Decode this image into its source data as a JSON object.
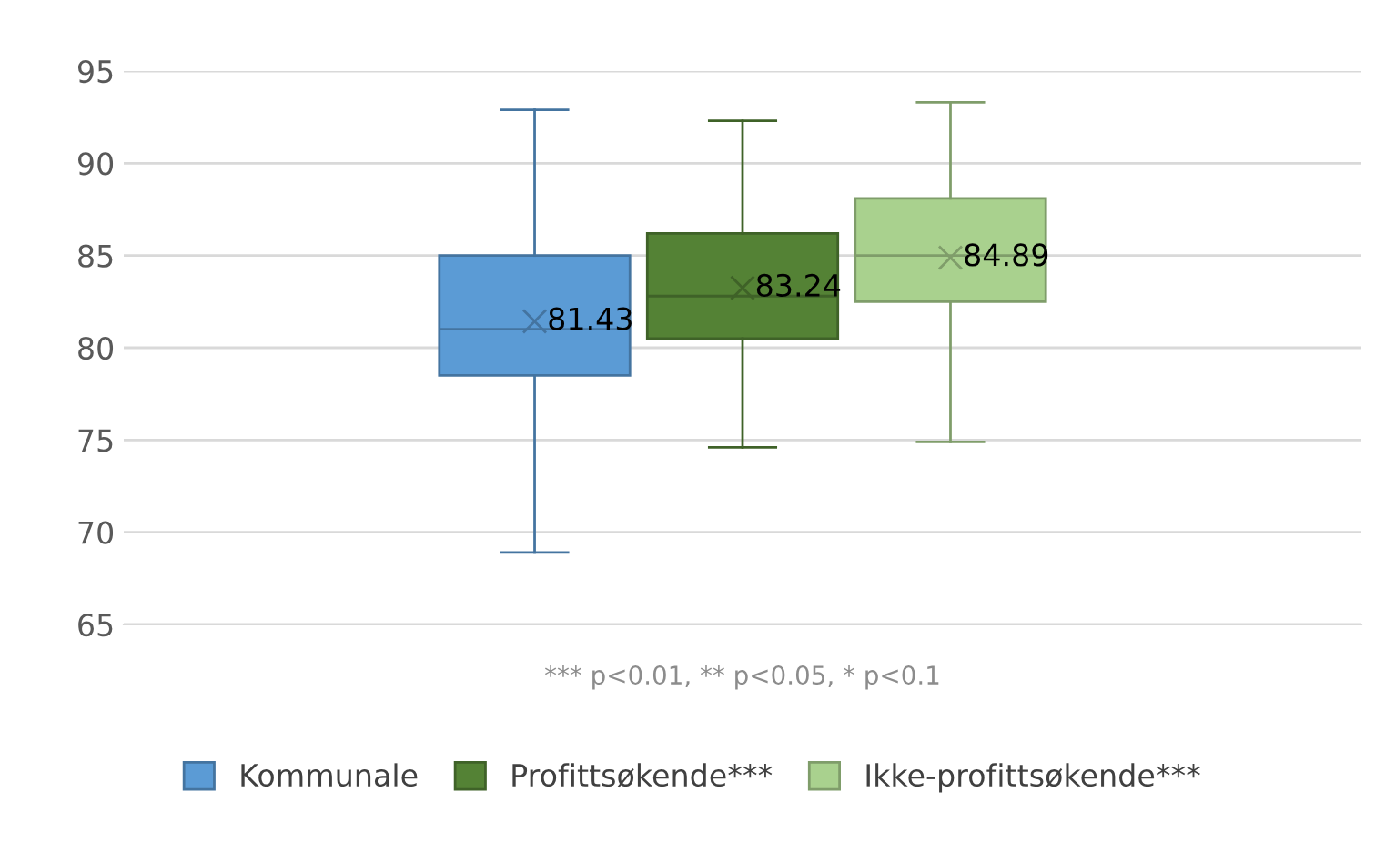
{
  "chart_data": {
    "type": "box",
    "categories": [
      null
    ],
    "series": [
      {
        "name": "Kommunale",
        "color": "#5b9bd5",
        "boxes": [
          {
            "low": 68.9,
            "q1": 78.5,
            "median": 81.0,
            "q3": 85.0,
            "high": 92.9,
            "mean": 81.43
          }
        ],
        "value_labels": [
          "81.43"
        ]
      },
      {
        "name": "Profittsøkende***",
        "color": "#548235",
        "boxes": [
          {
            "low": 74.6,
            "q1": 80.5,
            "median": 82.8,
            "q3": 86.2,
            "high": 92.3,
            "mean": 83.24
          }
        ],
        "value_labels": [
          "83.24"
        ]
      },
      {
        "name": "Ikke-profittsøkende***",
        "color": "#a9d18e",
        "boxes": [
          {
            "low": 74.9,
            "q1": 82.5,
            "median": 85.0,
            "q3": 88.1,
            "high": 93.3,
            "mean": 84.89
          }
        ],
        "value_labels": [
          "84.89"
        ]
      }
    ],
    "ylim": [
      65,
      95
    ],
    "yticks": [
      65,
      70,
      75,
      80,
      85,
      90,
      95
    ],
    "grid": "y",
    "legend": "bottom",
    "tick_labels": "y",
    "marker": "cross",
    "annotations": [
      "*** p<0.01, ** p<0.05, * p<0.1"
    ]
  }
}
